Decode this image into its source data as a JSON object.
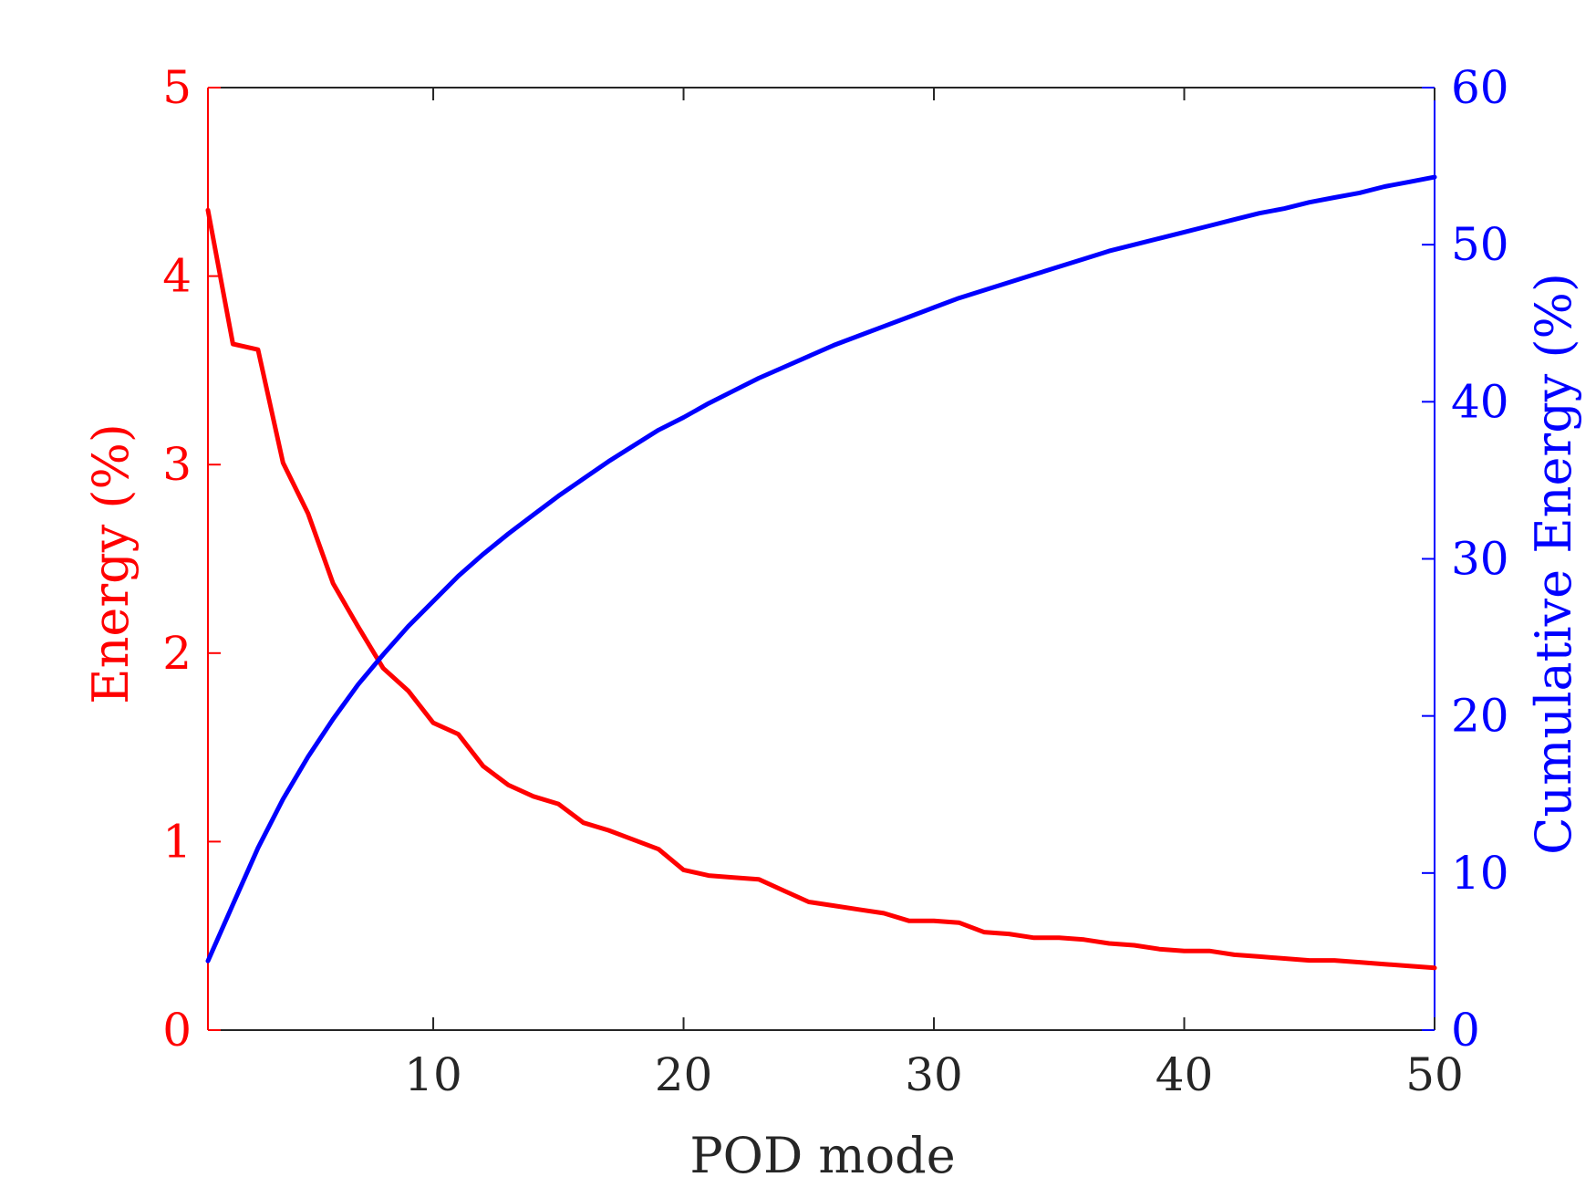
{
  "chart_data": {
    "type": "line",
    "xlabel": "POD mode",
    "ylabel_left": "Energy (%)",
    "ylabel_right": "Cumulative Energy (%)",
    "xlim": [
      1,
      50
    ],
    "ylim_left": [
      0,
      5
    ],
    "ylim_right": [
      0,
      60
    ],
    "xticks": [
      10,
      20,
      30,
      40,
      50
    ],
    "yticks_left": [
      0,
      1,
      2,
      3,
      4,
      5
    ],
    "yticks_right": [
      0,
      10,
      20,
      30,
      40,
      50,
      60
    ],
    "colors": {
      "left": "#ff0000",
      "right": "#0000ff",
      "frame": "#262626"
    },
    "grid": false,
    "series": [
      {
        "axis": "left",
        "color": "#ff0000",
        "x": [
          1,
          2,
          3,
          4,
          5,
          6,
          7,
          8,
          9,
          10,
          11,
          12,
          13,
          14,
          15,
          16,
          17,
          18,
          19,
          20,
          21,
          22,
          23,
          24,
          25,
          26,
          27,
          28,
          29,
          30,
          31,
          32,
          33,
          34,
          35,
          36,
          37,
          38,
          39,
          40,
          41,
          42,
          43,
          44,
          45,
          46,
          47,
          48,
          49,
          50
        ],
        "values": [
          4.35,
          3.64,
          3.61,
          3.01,
          2.74,
          2.37,
          2.14,
          1.92,
          1.8,
          1.63,
          1.57,
          1.4,
          1.3,
          1.24,
          1.2,
          1.1,
          1.06,
          1.01,
          0.96,
          0.85,
          0.82,
          0.81,
          0.8,
          0.74,
          0.68,
          0.66,
          0.64,
          0.62,
          0.58,
          0.58,
          0.57,
          0.52,
          0.51,
          0.49,
          0.49,
          0.48,
          0.46,
          0.45,
          0.43,
          0.42,
          0.42,
          0.4,
          0.39,
          0.38,
          0.37,
          0.37,
          0.36,
          0.35,
          0.34,
          0.33
        ]
      },
      {
        "axis": "right",
        "color": "#0000ff",
        "x": [
          1,
          2,
          3,
          4,
          5,
          6,
          7,
          8,
          9,
          10,
          11,
          12,
          13,
          14,
          15,
          16,
          17,
          18,
          19,
          20,
          21,
          22,
          23,
          24,
          25,
          26,
          27,
          28,
          29,
          30,
          31,
          32,
          33,
          34,
          35,
          36,
          37,
          38,
          39,
          40,
          41,
          42,
          43,
          44,
          45,
          46,
          47,
          48,
          49,
          50
        ],
        "values": [
          4.4,
          8.0,
          11.6,
          14.7,
          17.4,
          19.8,
          22.0,
          23.9,
          25.7,
          27.3,
          28.9,
          30.3,
          31.6,
          32.8,
          34.0,
          35.1,
          36.2,
          37.2,
          38.2,
          39.0,
          39.9,
          40.7,
          41.5,
          42.2,
          42.9,
          43.6,
          44.2,
          44.8,
          45.4,
          46.0,
          46.6,
          47.1,
          47.6,
          48.1,
          48.6,
          49.1,
          49.6,
          50.0,
          50.4,
          50.8,
          51.2,
          51.6,
          52.0,
          52.3,
          52.7,
          53.0,
          53.3,
          53.7,
          54.0,
          54.3
        ]
      }
    ]
  }
}
